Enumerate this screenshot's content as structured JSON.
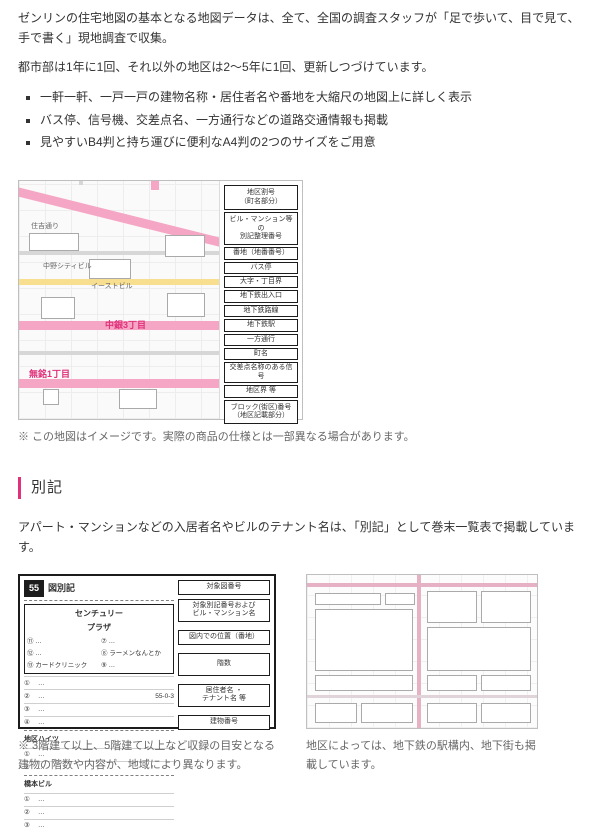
{
  "intro": {
    "p1": "ゼンリンの住宅地図の基本となる地図データは、全て、全国の調査スタッフが「足で歩いて、目で見て、手で書く」現地調査で収集。",
    "p2": "都市部は1年に1回、それ以外の地区は2～5年に1回、更新しつづけています。"
  },
  "features": [
    "一軒一軒、一戸一戸の建物名称・居住者名や番地を大縮尺の地図上に詳しく表示",
    "バス停、信号機、交差点名、一方通行などの道路交通情報も掲載",
    "見やすいB4判と持ち運びに便利なA4判の2つのサイズをご用意"
  ],
  "map": {
    "street1": "住吉通り",
    "bldg1": "中野シティビル",
    "bldg2": "イーストビル",
    "area1": "中銀3丁目",
    "area2": "無銘1丁目",
    "legend": [
      "地区割号\\n（町名部分）",
      "ビル・マンション等の\\n別記整理番号",
      "番地（地番番号）",
      "バス停",
      "大字・丁目界",
      "地下鉄出入口",
      "地下鉄路線",
      "地下鉄駅",
      "一方通行",
      "町名",
      "交差点名称のある信号",
      "地区界 等",
      "ブロック(街区)番号\\n（地区記載部分）"
    ]
  },
  "mapNote": "※ この地図はイメージです。実際の商品の仕様とは一部異なる場合があります。",
  "section": {
    "bekki": "別記"
  },
  "bekkiIntro": "アパート・マンションなどの入居者名やビルのテナント名は、「別記」として巻末一覧表で掲載しています。",
  "bekki": {
    "badge": "55",
    "title": "図別記",
    "plaza": {
      "name": "センチュリー\\nプラザ",
      "cells": [
        "⑪ …",
        "⑦ …",
        "⑫ …",
        "⑧ ラーメンなんとか",
        "⑬ カードクリニック",
        "⑨ …"
      ]
    },
    "address": "55-0-3",
    "heights": "地区ハイツ",
    "bldgList": "橋本ビル",
    "rightBoxes": [
      "対象図番号",
      "対象別記番号および\\nビル・マンション名",
      "図内での位置（番地）",
      "階数",
      "居住者名 ・\\nテナント名 等",
      "建物番号"
    ]
  },
  "bekkiNote": "※ 3階建て以上、5階建て以上など収録の目安となる建物の階数や内容が、地域により異なります。",
  "underNote": "地区によっては、地下鉄の駅構内、地下街も掲載しています。"
}
